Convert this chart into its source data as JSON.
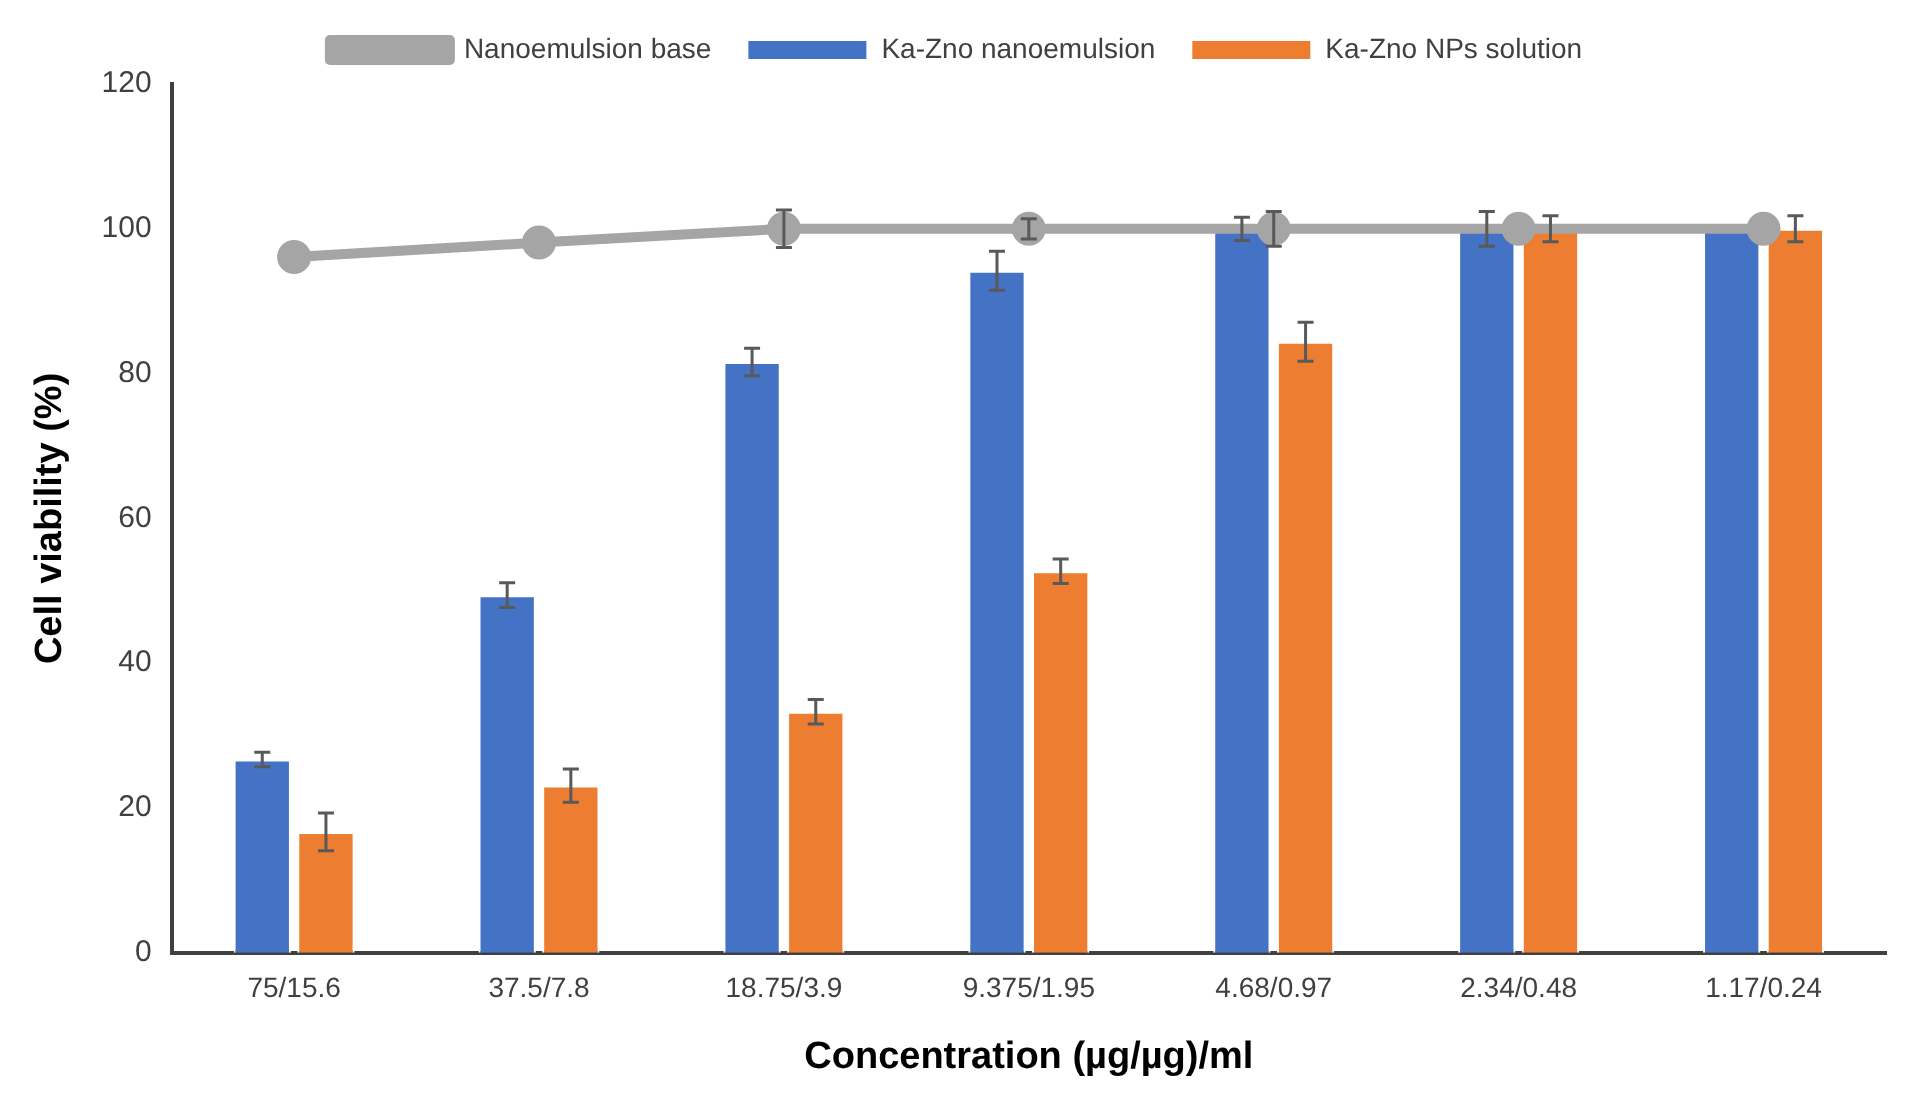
{
  "chart_data": {
    "type": "bar",
    "xlabel": "Concentration (µg/µg)/ml",
    "ylabel": "Cell viability (%)",
    "categories": [
      "75/15.6",
      "37.5/7.8",
      "18.75/3.9",
      "9.375/1.95",
      "4.68/0.97",
      "2.34/0.48",
      "1.17/0.24"
    ],
    "series": [
      {
        "name": "Ka-Zno nanoemulsion",
        "color": "#4472c4",
        "values": [
          26.7,
          49.4,
          81.6,
          94.2,
          100,
          100,
          100
        ],
        "errors": [
          1,
          1.7,
          1.9,
          2.7,
          1.6,
          2.4,
          null
        ]
      },
      {
        "name": "Ka-Zno NPs solution",
        "color": "#ed7d31",
        "values": [
          16.7,
          23.1,
          33.3,
          52.7,
          84.4,
          100,
          100
        ],
        "errors": [
          2.6,
          2.3,
          1.7,
          1.7,
          2.7,
          1.8,
          1.8
        ]
      },
      {
        "name": "Nanoemulsion base",
        "type": "line",
        "color": "#a5a5a5",
        "values": [
          96.1,
          98.1,
          100,
          100,
          100,
          100,
          100
        ],
        "errors": [
          null,
          null,
          2.6,
          1.4,
          2.4,
          null,
          null
        ],
        "marker": "circle"
      }
    ],
    "ylim": [
      0,
      120
    ],
    "yticks": [
      0,
      20,
      40,
      60,
      80,
      100,
      120
    ],
    "grid": false,
    "legend": "top"
  }
}
